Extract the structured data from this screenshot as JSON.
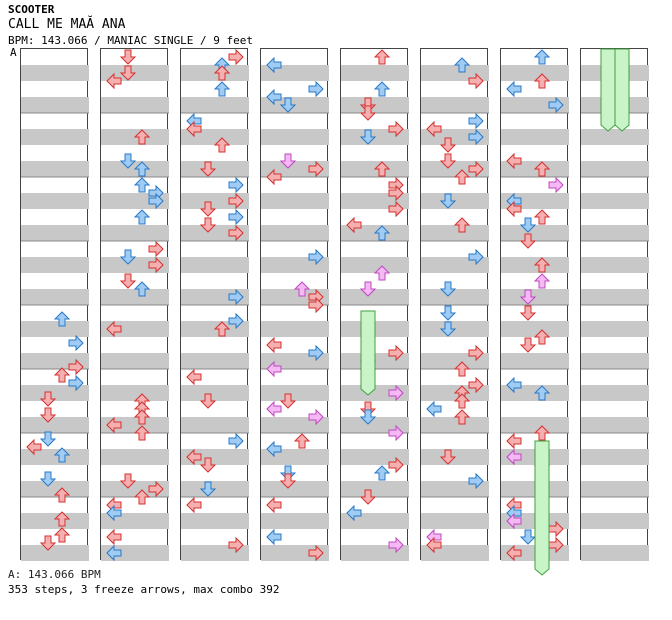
{
  "song": {
    "artist": "SCOOTER",
    "title": "CALL ME MAĂ ANA",
    "meta": "BPM: 143.066 / MANIAC SINGLE / 9 feet"
  },
  "chart": {
    "bpm_marker": "A",
    "columns": 8,
    "stripe_color": "#c8c8c8",
    "colors": {
      "red_arrow": "#f4b0b0",
      "red_stroke": "#d43030",
      "blue_arrow": "#a0ccf4",
      "blue_stroke": "#2878c8",
      "pink_arrow": "#f4b8f4",
      "pink_stroke": "#c048c0",
      "freeze_fill": "#c8f4c8",
      "freeze_stroke": "#40a040"
    }
  },
  "footer": {
    "bpm_line": "A: 143.066 BPM",
    "stats_line": "353 steps, 3 freeze arrows, max combo 392"
  }
}
